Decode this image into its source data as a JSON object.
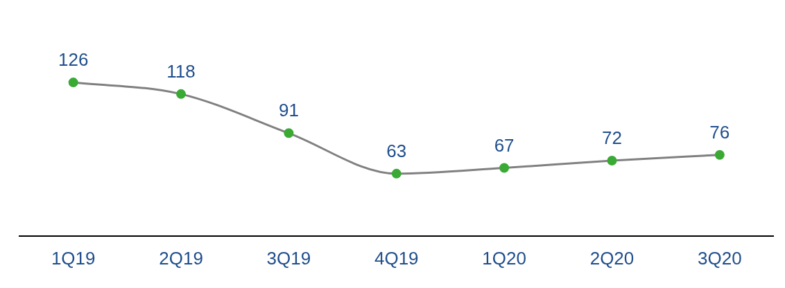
{
  "chart_data": {
    "type": "line",
    "categories": [
      "1Q19",
      "2Q19",
      "3Q19",
      "4Q19",
      "1Q20",
      "2Q20",
      "3Q20"
    ],
    "series": [
      {
        "color": "#808080",
        "colors": [
          "#3aaa35",
          "#3aaa35",
          "#3aaa35",
          "#3aaa35",
          "#3aaa35",
          "#3aaa35",
          "#3aaa35"
        ],
        "values": [
          126,
          118,
          91,
          63,
          67,
          72,
          76
        ]
      }
    ],
    "data_labels": true,
    "marker": "circle",
    "line_style": "solid",
    "grid": false,
    "legend": false
  }
}
